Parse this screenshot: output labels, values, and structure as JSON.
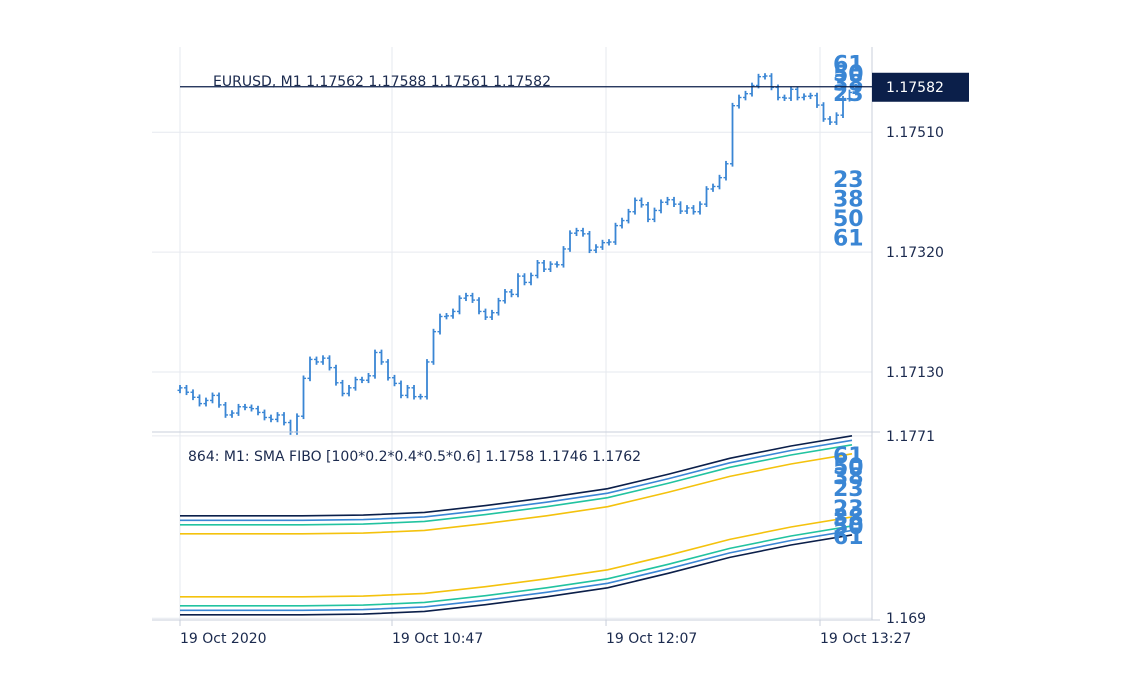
{
  "colors": {
    "candle": "#3a86d4",
    "dark": "#0b1f4a",
    "grid": "#e6e9ef",
    "axis": "#c9cfdb",
    "fib_yellow": "#f4c20d",
    "fib_green": "#22c3a0",
    "fib_blue": "#3a86d4",
    "fib_navy": "#0b1f4a"
  },
  "chart_data": [
    {
      "type": "ohlc",
      "title": "EURUSD, M1 1.17562 1.17588 1.17561 1.17582",
      "current_price": 1.17582,
      "current_price_label": "1.17582",
      "ylim": [
        1.17035,
        1.17645
      ],
      "y_ticks": [
        {
          "value": 1.1751,
          "label": "1.17510"
        },
        {
          "value": 1.1732,
          "label": "1.17320"
        },
        {
          "value": 1.1713,
          "label": "1.17130"
        }
      ],
      "fib_upper_labels": [
        "61",
        "50",
        "38",
        "23"
      ],
      "fib_lower_labels": [
        "23",
        "38",
        "50",
        "61"
      ],
      "fib_upper_values": [
        1.17619,
        1.17604,
        1.17589,
        1.17572
      ],
      "fib_lower_values": [
        1.17436,
        1.17405,
        1.17374,
        1.17343
      ],
      "bars_close": [
        1.17105,
        1.17098,
        1.1709,
        1.1708,
        1.17085,
        1.17093,
        1.17078,
        1.17062,
        1.17065,
        1.17075,
        1.17074,
        1.17072,
        1.17066,
        1.17058,
        1.17055,
        1.17062,
        1.1705,
        1.17035,
        1.1706,
        1.1712,
        1.1715,
        1.17146,
        1.17152,
        1.17137,
        1.17113,
        1.17096,
        1.17105,
        1.17118,
        1.17117,
        1.17124,
        1.17161,
        1.17146,
        1.17121,
        1.17112,
        1.17093,
        1.17105,
        1.17091,
        1.17091,
        1.17146,
        1.17194,
        1.17218,
        1.17219,
        1.17226,
        1.17247,
        1.17251,
        1.17244,
        1.17226,
        1.17217,
        1.17224,
        1.17243,
        1.17257,
        1.17253,
        1.17282,
        1.17272,
        1.17283,
        1.17303,
        1.17293,
        1.17301,
        1.173,
        1.17325,
        1.1735,
        1.17354,
        1.17349,
        1.17323,
        1.17328,
        1.17335,
        1.17336,
        1.17362,
        1.1737,
        1.17384,
        1.17402,
        1.17395,
        1.17372,
        1.17386,
        1.17399,
        1.17403,
        1.17396,
        1.17385,
        1.1739,
        1.17384,
        1.17396,
        1.1742,
        1.17424,
        1.17438,
        1.1746,
        1.17552,
        1.17565,
        1.17571,
        1.17584,
        1.17598,
        1.17599,
        1.17581,
        1.17565,
        1.17564,
        1.17578,
        1.17565,
        1.17567,
        1.17568,
        1.17553,
        1.17531,
        1.17526,
        1.17537,
        1.17563,
        1.17573,
        1.17582
      ]
    },
    {
      "type": "line",
      "title": "864: M1: SMA FIBO [100*0.2*0.4*0.5*0.6] 1.1758 1.1746 1.1762",
      "ylim": [
        1.16892,
        1.17727
      ],
      "y_ticks": [
        {
          "value": 1.1771,
          "label": "1.1771"
        },
        {
          "value": 1.169,
          "label": "1.169"
        }
      ],
      "upper_labels": [
        "61",
        "50",
        "38",
        "23"
      ],
      "lower_labels": [
        "23",
        "38",
        "50",
        "61"
      ],
      "series": [
        {
          "color_key": "fib_navy",
          "values": [
            1.17355,
            1.17355,
            1.17355,
            1.17358,
            1.1737,
            1.174,
            1.17435,
            1.17475,
            1.1754,
            1.1761,
            1.17665,
            1.1771
          ]
        },
        {
          "color_key": "fib_blue",
          "values": [
            1.17335,
            1.17335,
            1.17335,
            1.17338,
            1.1735,
            1.1738,
            1.17415,
            1.17455,
            1.1752,
            1.1759,
            1.17645,
            1.1769
          ]
        },
        {
          "color_key": "fib_green",
          "values": [
            1.17315,
            1.17315,
            1.17315,
            1.17318,
            1.1733,
            1.1736,
            1.17395,
            1.17435,
            1.175,
            1.1757,
            1.17625,
            1.1767
          ]
        },
        {
          "color_key": "fib_yellow",
          "values": [
            1.17275,
            1.17275,
            1.17275,
            1.17278,
            1.1729,
            1.1732,
            1.17355,
            1.17395,
            1.1746,
            1.1753,
            1.17585,
            1.1763
          ]
        },
        {
          "color_key": "fib_yellow",
          "values": [
            1.16995,
            1.16995,
            1.16995,
            1.16998,
            1.1701,
            1.1704,
            1.17075,
            1.17115,
            1.1718,
            1.1725,
            1.17305,
            1.1735
          ]
        },
        {
          "color_key": "fib_green",
          "values": [
            1.16955,
            1.16955,
            1.16955,
            1.16958,
            1.1697,
            1.17,
            1.17035,
            1.17075,
            1.1714,
            1.1721,
            1.17265,
            1.1731
          ]
        },
        {
          "color_key": "fib_blue",
          "values": [
            1.16935,
            1.16935,
            1.16935,
            1.16938,
            1.1695,
            1.1698,
            1.17015,
            1.17055,
            1.1712,
            1.1719,
            1.17245,
            1.1729
          ]
        },
        {
          "color_key": "fib_navy",
          "values": [
            1.16915,
            1.16915,
            1.16915,
            1.16918,
            1.1693,
            1.1696,
            1.16995,
            1.17035,
            1.171,
            1.1717,
            1.17225,
            1.1727
          ]
        }
      ]
    }
  ],
  "x_axis": {
    "ticks": [
      {
        "label": "19 Oct 2020",
        "fraction": 0.0
      },
      {
        "label": "19 Oct 10:47",
        "fraction": 0.3302
      },
      {
        "label": "19 Oct 12:07",
        "fraction": 0.6636
      },
      {
        "label": "19 Oct 13:27",
        "fraction": 0.9969
      }
    ]
  }
}
